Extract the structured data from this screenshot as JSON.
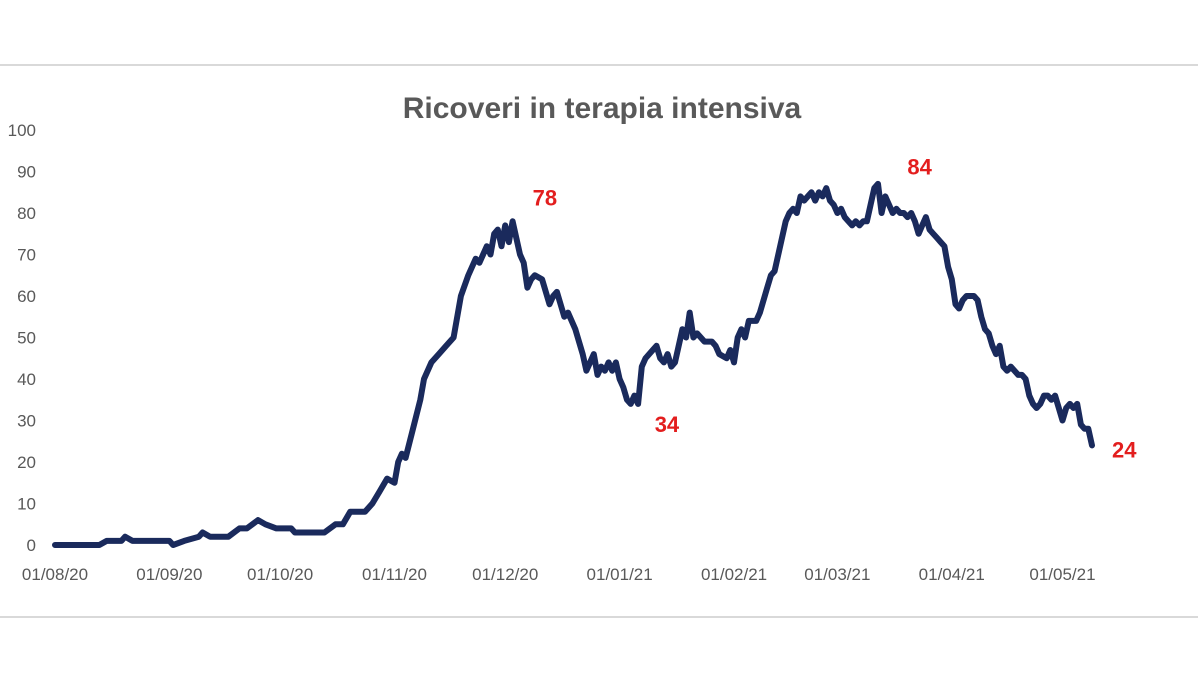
{
  "chart_data": {
    "type": "line",
    "title": "Ricoveri in terapia intensiva",
    "xlabel": "",
    "ylabel": "",
    "ylim": [
      0,
      100
    ],
    "y_ticks": [
      0,
      10,
      20,
      30,
      40,
      50,
      60,
      70,
      80,
      90,
      100
    ],
    "x_ticks": [
      "01/08/20",
      "01/09/20",
      "01/10/20",
      "01/11/20",
      "01/12/20",
      "01/01/21",
      "01/02/21",
      "01/03/21",
      "01/04/21",
      "01/05/21"
    ],
    "xlim": [
      "2020-08-01",
      "2021-05-09"
    ],
    "grid": false,
    "legend": "none",
    "line_color": "#1a2a5c",
    "annotation_color": "#e31e1e",
    "series": [
      {
        "points": [
          [
            "2020-08-01",
            0
          ],
          [
            "2020-08-13",
            0
          ],
          [
            "2020-08-15",
            1
          ],
          [
            "2020-08-19",
            1
          ],
          [
            "2020-08-20",
            2
          ],
          [
            "2020-08-22",
            1
          ],
          [
            "2020-08-27",
            1
          ],
          [
            "2020-09-01",
            1
          ],
          [
            "2020-09-02",
            0
          ],
          [
            "2020-09-05",
            1
          ],
          [
            "2020-09-09",
            2
          ],
          [
            "2020-09-10",
            3
          ],
          [
            "2020-09-12",
            2
          ],
          [
            "2020-09-17",
            2
          ],
          [
            "2020-09-20",
            4
          ],
          [
            "2020-09-22",
            4
          ],
          [
            "2020-09-25",
            6
          ],
          [
            "2020-09-27",
            5
          ],
          [
            "2020-09-30",
            4
          ],
          [
            "2020-10-04",
            4
          ],
          [
            "2020-10-05",
            3
          ],
          [
            "2020-10-13",
            3
          ],
          [
            "2020-10-16",
            5
          ],
          [
            "2020-10-18",
            5
          ],
          [
            "2020-10-20",
            8
          ],
          [
            "2020-10-24",
            8
          ],
          [
            "2020-10-26",
            10
          ],
          [
            "2020-10-28",
            13
          ],
          [
            "2020-10-30",
            16
          ],
          [
            "2020-11-01",
            15
          ],
          [
            "2020-11-02",
            20
          ],
          [
            "2020-11-03",
            22
          ],
          [
            "2020-11-04",
            21
          ],
          [
            "2020-11-06",
            28
          ],
          [
            "2020-11-08",
            35
          ],
          [
            "2020-11-09",
            40
          ],
          [
            "2020-11-11",
            44
          ],
          [
            "2020-11-13",
            46
          ],
          [
            "2020-11-15",
            48
          ],
          [
            "2020-11-17",
            50
          ],
          [
            "2020-11-19",
            60
          ],
          [
            "2020-11-21",
            65
          ],
          [
            "2020-11-23",
            69
          ],
          [
            "2020-11-24",
            68
          ],
          [
            "2020-11-25",
            70
          ],
          [
            "2020-11-26",
            72
          ],
          [
            "2020-11-27",
            70
          ],
          [
            "2020-11-28",
            75
          ],
          [
            "2020-11-29",
            76
          ],
          [
            "2020-11-30",
            72
          ],
          [
            "2020-12-01",
            77
          ],
          [
            "2020-12-02",
            73
          ],
          [
            "2020-12-03",
            78
          ],
          [
            "2020-12-05",
            70
          ],
          [
            "2020-12-06",
            68
          ],
          [
            "2020-12-07",
            62
          ],
          [
            "2020-12-08",
            64
          ],
          [
            "2020-12-09",
            65
          ],
          [
            "2020-12-11",
            64
          ],
          [
            "2020-12-13",
            58
          ],
          [
            "2020-12-14",
            60
          ],
          [
            "2020-12-15",
            61
          ],
          [
            "2020-12-16",
            58
          ],
          [
            "2020-12-17",
            55
          ],
          [
            "2020-12-18",
            56
          ],
          [
            "2020-12-20",
            52
          ],
          [
            "2020-12-22",
            46
          ],
          [
            "2020-12-23",
            42
          ],
          [
            "2020-12-24",
            44
          ],
          [
            "2020-12-25",
            46
          ],
          [
            "2020-12-26",
            41
          ],
          [
            "2020-12-27",
            43
          ],
          [
            "2020-12-28",
            42
          ],
          [
            "2020-12-29",
            44
          ],
          [
            "2020-12-30",
            42
          ],
          [
            "2020-12-31",
            44
          ],
          [
            "2021-01-01",
            40
          ],
          [
            "2021-01-02",
            38
          ],
          [
            "2021-01-03",
            35
          ],
          [
            "2021-01-04",
            34
          ],
          [
            "2021-01-05",
            36
          ],
          [
            "2021-01-06",
            34
          ],
          [
            "2021-01-07",
            43
          ],
          [
            "2021-01-08",
            45
          ],
          [
            "2021-01-10",
            47
          ],
          [
            "2021-01-11",
            48
          ],
          [
            "2021-01-12",
            45
          ],
          [
            "2021-01-13",
            44
          ],
          [
            "2021-01-14",
            46
          ],
          [
            "2021-01-15",
            43
          ],
          [
            "2021-01-16",
            44
          ],
          [
            "2021-01-18",
            52
          ],
          [
            "2021-01-19",
            50
          ],
          [
            "2021-01-20",
            56
          ],
          [
            "2021-01-21",
            50
          ],
          [
            "2021-01-22",
            51
          ],
          [
            "2021-01-24",
            49
          ],
          [
            "2021-01-26",
            49
          ],
          [
            "2021-01-27",
            48
          ],
          [
            "2021-01-28",
            46
          ],
          [
            "2021-01-30",
            45
          ],
          [
            "2021-01-31",
            47
          ],
          [
            "2021-02-01",
            44
          ],
          [
            "2021-02-02",
            50
          ],
          [
            "2021-02-03",
            52
          ],
          [
            "2021-02-04",
            50
          ],
          [
            "2021-02-05",
            54
          ],
          [
            "2021-02-07",
            54
          ],
          [
            "2021-02-08",
            56
          ],
          [
            "2021-02-10",
            62
          ],
          [
            "2021-02-11",
            65
          ],
          [
            "2021-02-12",
            66
          ],
          [
            "2021-02-13",
            70
          ],
          [
            "2021-02-15",
            78
          ],
          [
            "2021-02-16",
            80
          ],
          [
            "2021-02-17",
            81
          ],
          [
            "2021-02-18",
            80
          ],
          [
            "2021-02-19",
            84
          ],
          [
            "2021-02-20",
            83
          ],
          [
            "2021-02-21",
            84
          ],
          [
            "2021-02-22",
            85
          ],
          [
            "2021-02-23",
            83
          ],
          [
            "2021-02-24",
            85
          ],
          [
            "2021-02-25",
            84
          ],
          [
            "2021-02-26",
            86
          ],
          [
            "2021-02-27",
            83
          ],
          [
            "2021-02-28",
            82
          ],
          [
            "2021-03-01",
            80
          ],
          [
            "2021-03-02",
            81
          ],
          [
            "2021-03-03",
            79
          ],
          [
            "2021-03-04",
            78
          ],
          [
            "2021-03-05",
            77
          ],
          [
            "2021-03-06",
            78
          ],
          [
            "2021-03-07",
            77
          ],
          [
            "2021-03-08",
            78
          ],
          [
            "2021-03-09",
            78
          ],
          [
            "2021-03-10",
            82
          ],
          [
            "2021-03-11",
            86
          ],
          [
            "2021-03-12",
            87
          ],
          [
            "2021-03-13",
            80
          ],
          [
            "2021-03-14",
            84
          ],
          [
            "2021-03-15",
            82
          ],
          [
            "2021-03-16",
            80
          ],
          [
            "2021-03-17",
            81
          ],
          [
            "2021-03-18",
            80
          ],
          [
            "2021-03-19",
            80
          ],
          [
            "2021-03-20",
            79
          ],
          [
            "2021-03-21",
            80
          ],
          [
            "2021-03-22",
            78
          ],
          [
            "2021-03-23",
            75
          ],
          [
            "2021-03-24",
            77
          ],
          [
            "2021-03-25",
            79
          ],
          [
            "2021-03-26",
            76
          ],
          [
            "2021-03-27",
            75
          ],
          [
            "2021-03-28",
            74
          ],
          [
            "2021-03-29",
            73
          ],
          [
            "2021-03-30",
            72
          ],
          [
            "2021-03-31",
            67
          ],
          [
            "2021-04-01",
            64
          ],
          [
            "2021-04-02",
            58
          ],
          [
            "2021-04-03",
            57
          ],
          [
            "2021-04-04",
            59
          ],
          [
            "2021-04-05",
            60
          ],
          [
            "2021-04-07",
            60
          ],
          [
            "2021-04-08",
            59
          ],
          [
            "2021-04-09",
            55
          ],
          [
            "2021-04-10",
            52
          ],
          [
            "2021-04-11",
            51
          ],
          [
            "2021-04-12",
            48
          ],
          [
            "2021-04-13",
            46
          ],
          [
            "2021-04-14",
            48
          ],
          [
            "2021-04-15",
            43
          ],
          [
            "2021-04-16",
            42
          ],
          [
            "2021-04-17",
            43
          ],
          [
            "2021-04-18",
            42
          ],
          [
            "2021-04-19",
            41
          ],
          [
            "2021-04-20",
            41
          ],
          [
            "2021-04-21",
            40
          ],
          [
            "2021-04-22",
            36
          ],
          [
            "2021-04-23",
            34
          ],
          [
            "2021-04-24",
            33
          ],
          [
            "2021-04-25",
            34
          ],
          [
            "2021-04-26",
            36
          ],
          [
            "2021-04-27",
            36
          ],
          [
            "2021-04-28",
            35
          ],
          [
            "2021-04-29",
            36
          ],
          [
            "2021-04-30",
            33
          ],
          [
            "2021-05-01",
            30
          ],
          [
            "2021-05-02",
            33
          ],
          [
            "2021-05-03",
            34
          ],
          [
            "2021-05-04",
            33
          ],
          [
            "2021-05-05",
            34
          ],
          [
            "2021-05-06",
            29
          ],
          [
            "2021-05-07",
            28
          ],
          [
            "2021-05-08",
            28
          ],
          [
            "2021-05-09",
            24
          ]
        ]
      }
    ],
    "annotations": [
      {
        "x": "2020-12-03",
        "y": 78,
        "text": "78"
      },
      {
        "x": "2021-01-04",
        "y": 34,
        "text": "34"
      },
      {
        "x": "2021-03-14",
        "y": 84,
        "text": "84"
      },
      {
        "x": "2021-05-09",
        "y": 24,
        "text": "24"
      }
    ]
  }
}
